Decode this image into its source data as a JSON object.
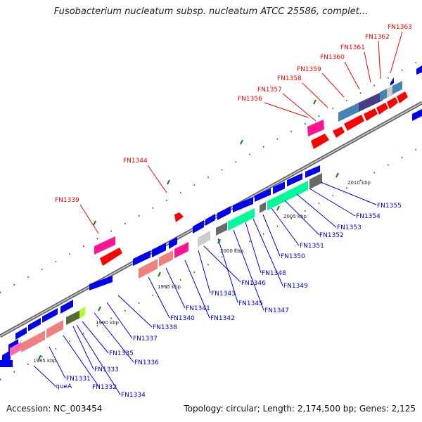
{
  "title": "Fusobacterium nucleatum subsp. nucleatum ATCC 25586, complet...",
  "footer": {
    "accession": "Accession: NC_003454",
    "summary": "Topology: circular; Length: 2,174,500 bp; Genes: 2,125"
  },
  "scale_labels": [
    "1985 kbp",
    "1990 kbp",
    "1995 kbp",
    "2000 kbp",
    "2005 kbp",
    "2010 kbp"
  ],
  "genes_top": [
    "FN1339",
    "FN1344",
    "FN1356",
    "FN1357",
    "FN1358",
    "FN1359",
    "FN1360",
    "FN1361",
    "FN1362",
    "FN1363"
  ],
  "genes_bottom": [
    "queA",
    "FN1331",
    "FN1332",
    "FN1333",
    "FN1334",
    "FN1335",
    "FN1336",
    "FN1337",
    "FN1338",
    "FN1340",
    "FN1341",
    "FN1342",
    "FN1343",
    "FN1345",
    "FN1346",
    "FN1347",
    "FN1348",
    "FN1349",
    "FN1350",
    "FN1351",
    "FN1352",
    "FN1353",
    "FN1354",
    "FN1355"
  ],
  "colors": {
    "forward_gene": "#ff0000",
    "reverse_gene": "#0000ee",
    "label_red": "#ff0000",
    "label_blue": "#0000dd",
    "backbone": "#777777",
    "tick_mark": "#1a7a1a"
  }
}
